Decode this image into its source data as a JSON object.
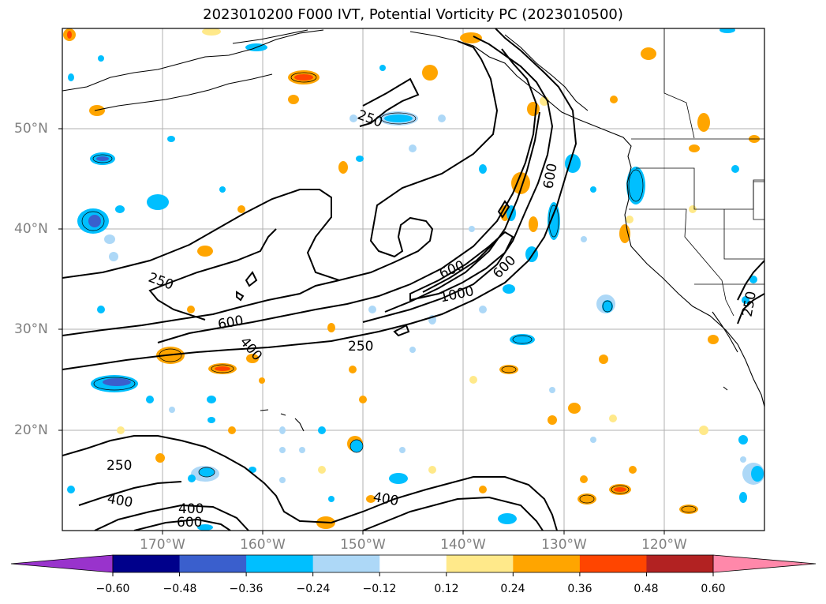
{
  "title": "2023010200 F000 IVT, Potential Vorticity PC (2023010500)",
  "lat_labels": [
    "50°N",
    "40°N",
    "30°N",
    "20°N"
  ],
  "lon_labels": [
    "170°W",
    "160°W",
    "150°W",
    "140°W",
    "130°W",
    "120°W"
  ],
  "contour_labels": {
    "l250_upper": "250",
    "l600_right": "600",
    "l250_west": "250",
    "l600_mid": "600",
    "l400_mid": "400",
    "l250_south": "250",
    "l600_core": "600",
    "l1000": "1000",
    "l600_core2": "600",
    "l250_coast": "250",
    "l250_sw": "250",
    "l400_sw": "400",
    "l400_s1": "400",
    "l600_s1": "600",
    "l400_s2": "400"
  },
  "colorbar": {
    "labels": [
      "−0.60",
      "−0.48",
      "−0.36",
      "−0.24",
      "−0.12",
      "0.12",
      "0.24",
      "0.36",
      "0.48",
      "0.60"
    ],
    "colors": [
      "#9933cc",
      "#00008b",
      "#3a5fcd",
      "#00bfff",
      "#add8f7",
      "#ffffff",
      "#ffe98a",
      "#ffa500",
      "#ff4500",
      "#b22222",
      "#ff88aa"
    ]
  },
  "colors": {
    "contour": "#000000",
    "grid": "#b0b0b0",
    "axis_label": "#808080"
  }
}
